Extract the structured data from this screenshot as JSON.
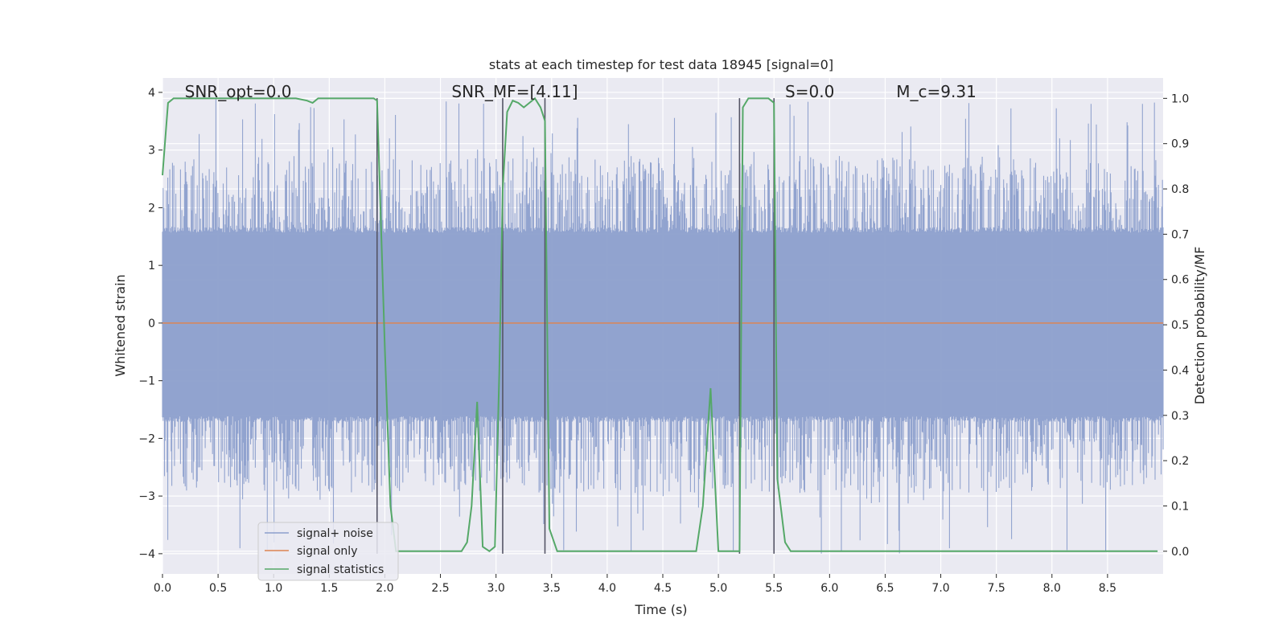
{
  "chart_data": {
    "type": "line",
    "title": "stats at each timestep for test data 18945 [signal=0]",
    "xlabel": "Time (s)",
    "ylabel": "Whitened strain",
    "ylabel_right": "Detection probability/MF",
    "xlim": [
      0.0,
      9.0
    ],
    "ylim": [
      -4.35,
      4.25
    ],
    "ylim_right": [
      -0.05,
      1.045
    ],
    "x_ticks": [
      0.0,
      0.5,
      1.0,
      1.5,
      2.0,
      2.5,
      3.0,
      3.5,
      4.0,
      4.5,
      5.0,
      5.5,
      6.0,
      6.5,
      7.0,
      7.5,
      8.0,
      8.5
    ],
    "x_tick_labels": [
      "0.0",
      "0.5",
      "1.0",
      "1.5",
      "2.0",
      "2.5",
      "3.0",
      "3.5",
      "4.0",
      "4.5",
      "5.0",
      "5.5",
      "6.0",
      "6.5",
      "7.0",
      "7.5",
      "8.0",
      "8.5"
    ],
    "y_ticks": [
      -4,
      -3,
      -2,
      -1,
      0,
      1,
      2,
      3,
      4
    ],
    "y_tick_labels": [
      "−4",
      "−3",
      "−2",
      "−1",
      "0",
      "1",
      "2",
      "3",
      "4"
    ],
    "y_right_ticks": [
      0.0,
      0.1,
      0.2,
      0.3,
      0.4,
      0.5,
      0.6,
      0.7,
      0.8,
      0.9,
      1.0
    ],
    "y_right_tick_labels": [
      "0.0",
      "0.1",
      "0.2",
      "0.3",
      "0.4",
      "0.5",
      "0.6",
      "0.7",
      "0.8",
      "0.9",
      "1.0"
    ],
    "grid": true,
    "legend_position": "lower-left",
    "annotations": [
      {
        "label": "SNR_opt=0.0",
        "x": 0.2,
        "y": 4.0
      },
      {
        "label": "SNR_MF=[4.11]",
        "x": 2.6,
        "y": 4.0
      },
      {
        "label": "S=0.0",
        "x": 5.6,
        "y": 4.0
      },
      {
        "label": "M_c=9.31",
        "x": 6.6,
        "y": 4.0
      }
    ],
    "vertical_lines_x": [
      1.93,
      3.06,
      3.44,
      5.19,
      5.5
    ],
    "series": [
      {
        "name": "signal+ noise",
        "color": "#8c9fcc",
        "axis": "left",
        "description_envelope": {
          "dense_min": -1.65,
          "dense_max": 1.6,
          "peak_min": -4.0,
          "peak_max": 3.9
        }
      },
      {
        "name": "signal only",
        "color": "#dd8452",
        "axis": "left",
        "values_constant": 0.0
      },
      {
        "name": "signal statistics",
        "color": "#55a868",
        "axis": "right",
        "x": [
          0.0,
          0.05,
          0.1,
          0.15,
          0.3,
          0.6,
          0.9,
          1.2,
          1.3,
          1.35,
          1.4,
          1.6,
          1.8,
          1.9,
          1.93,
          2.0,
          2.05,
          2.1,
          2.3,
          2.5,
          2.6,
          2.69,
          2.74,
          2.78,
          2.83,
          2.88,
          2.94,
          2.99,
          3.03,
          3.06,
          3.1,
          3.15,
          3.2,
          3.25,
          3.3,
          3.35,
          3.4,
          3.44,
          3.48,
          3.55,
          3.65,
          4.0,
          4.5,
          4.8,
          4.86,
          4.9,
          4.93,
          4.96,
          5.0,
          5.05,
          5.1,
          5.15,
          5.19,
          5.22,
          5.27,
          5.35,
          5.45,
          5.5,
          5.53,
          5.6,
          5.65,
          6.0,
          7.0,
          8.0,
          8.95
        ],
        "values": [
          0.83,
          0.99,
          1.0,
          1.0,
          1.0,
          1.0,
          1.0,
          1.0,
          0.995,
          0.99,
          1.0,
          1.0,
          1.0,
          1.0,
          0.995,
          0.45,
          0.1,
          0.0,
          0.0,
          0.0,
          0.0,
          0.0,
          0.02,
          0.1,
          0.33,
          0.01,
          0.0,
          0.01,
          0.4,
          0.8,
          0.97,
          0.995,
          0.99,
          0.98,
          0.99,
          1.0,
          0.98,
          0.95,
          0.05,
          0.0,
          0.0,
          0.0,
          0.0,
          0.0,
          0.1,
          0.25,
          0.36,
          0.2,
          0.0,
          0.0,
          0.0,
          0.0,
          0.0,
          0.98,
          1.0,
          1.0,
          1.0,
          0.99,
          0.16,
          0.02,
          0.0,
          0.0,
          0.0,
          0.0,
          0.0
        ]
      }
    ]
  }
}
